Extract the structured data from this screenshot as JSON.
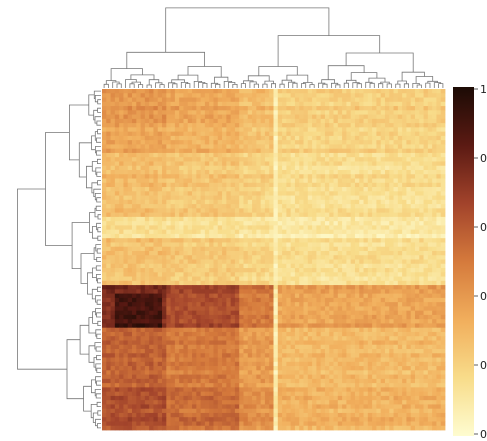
{
  "chart_data": {
    "type": "heatmap",
    "title": "",
    "xlabel": "",
    "ylabel": "",
    "clustered": true,
    "dendrograms": [
      "top",
      "left"
    ],
    "n_rows": 80,
    "n_cols": 80,
    "row_block_levels": [
      {
        "rows": [
          0,
          8
        ],
        "level": 0.42
      },
      {
        "rows": [
          8,
          15
        ],
        "level": 0.36
      },
      {
        "rows": [
          15,
          30
        ],
        "level": 0.26
      },
      {
        "rows": [
          30,
          35
        ],
        "level": 0.1
      },
      {
        "rows": [
          35,
          46
        ],
        "level": 0.24
      },
      {
        "rows": [
          46,
          56
        ],
        "level": 0.82
      },
      {
        "rows": [
          56,
          70
        ],
        "level": 0.6
      },
      {
        "rows": [
          70,
          80
        ],
        "level": 0.66
      }
    ],
    "col_block_levels": [
      {
        "cols": [
          0,
          15
        ],
        "level": 1.0
      },
      {
        "cols": [
          15,
          32
        ],
        "level": 0.85
      },
      {
        "cols": [
          32,
          40
        ],
        "level": 0.65
      },
      {
        "cols": [
          40,
          41
        ],
        "level": 0.05
      },
      {
        "cols": [
          41,
          80
        ],
        "level": 0.45
      }
    ],
    "colorbar": {
      "min": 0,
      "max": 1,
      "tick_labels": [
        "1",
        "0",
        "0",
        "0",
        "0",
        "0"
      ],
      "colormap": "YlOrBr-dark",
      "colors": [
        "#fefcd0",
        "#f8dc8a",
        "#f1ae5c",
        "#d57a3c",
        "#a2432b",
        "#5b1a13",
        "#1c0b05"
      ]
    }
  }
}
